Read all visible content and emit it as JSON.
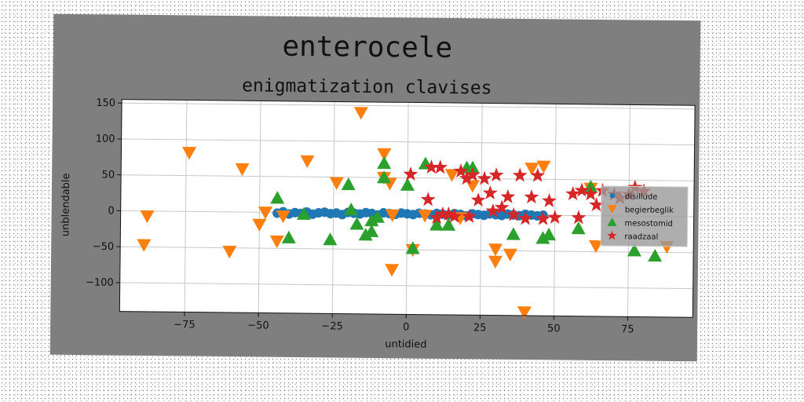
{
  "chart_data": {
    "type": "scatter",
    "title": "enterocele",
    "subtitle": "enigmatization clavises",
    "xlabel": "untidied",
    "ylabel": "unblendable",
    "xlim": [
      -97,
      97
    ],
    "ylim": [
      -140,
      155
    ],
    "xticks": [
      -75,
      -50,
      -25,
      0,
      25,
      50,
      75
    ],
    "yticks": [
      -100,
      -50,
      0,
      50,
      100,
      150
    ],
    "grid": true,
    "legend_position": "center-right",
    "series": [
      {
        "name": "disillude",
        "marker": "circle",
        "color": "#1f77b4",
        "points": [
          [
            -44,
            -1
          ],
          [
            -42,
            1
          ],
          [
            -40,
            -2
          ],
          [
            -38,
            0
          ],
          [
            -36,
            -1
          ],
          [
            -34,
            1
          ],
          [
            -32,
            -2
          ],
          [
            -30,
            0
          ],
          [
            -28,
            1
          ],
          [
            -26,
            -1
          ],
          [
            -24,
            0
          ],
          [
            -22,
            -2
          ],
          [
            -20,
            1
          ],
          [
            -18,
            0
          ],
          [
            -16,
            -1
          ],
          [
            -14,
            1
          ],
          [
            -12,
            0
          ],
          [
            -10,
            -2
          ],
          [
            -8,
            1
          ],
          [
            -6,
            0
          ],
          [
            -4,
            -1
          ],
          [
            -2,
            1
          ],
          [
            0,
            0
          ],
          [
            2,
            -1
          ],
          [
            4,
            1
          ],
          [
            6,
            0
          ],
          [
            8,
            -1
          ],
          [
            10,
            1
          ],
          [
            12,
            0
          ],
          [
            14,
            -1
          ],
          [
            16,
            1
          ],
          [
            18,
            0
          ],
          [
            20,
            -2
          ],
          [
            22,
            1
          ],
          [
            24,
            0
          ],
          [
            26,
            -1
          ],
          [
            28,
            1
          ],
          [
            30,
            0
          ],
          [
            32,
            -1
          ],
          [
            34,
            1
          ],
          [
            36,
            0
          ],
          [
            38,
            -1
          ],
          [
            40,
            1
          ],
          [
            42,
            0
          ],
          [
            44,
            -1
          ],
          [
            46,
            0
          ]
        ]
      },
      {
        "name": "begierbeglik",
        "marker": "triangle-down",
        "color": "#ff7f0e",
        "points": [
          [
            -88,
            -7
          ],
          [
            -89,
            -47
          ],
          [
            -74,
            82
          ],
          [
            -60,
            -55
          ],
          [
            -56,
            60
          ],
          [
            -50,
            -17
          ],
          [
            -48,
            0
          ],
          [
            -44,
            -40
          ],
          [
            -42,
            -5
          ],
          [
            -34,
            72
          ],
          [
            -24,
            42
          ],
          [
            -16,
            140
          ],
          [
            -8,
            83
          ],
          [
            -8,
            50
          ],
          [
            -6,
            42
          ],
          [
            -5,
            -2
          ],
          [
            -5,
            -78
          ],
          [
            2,
            -50
          ],
          [
            6,
            -2
          ],
          [
            15,
            55
          ],
          [
            18,
            -5
          ],
          [
            22,
            40
          ],
          [
            30,
            -65
          ],
          [
            30,
            -48
          ],
          [
            35,
            -55
          ],
          [
            40,
            -135
          ],
          [
            42,
            65
          ],
          [
            46,
            68
          ],
          [
            62,
            38
          ],
          [
            64,
            -42
          ],
          [
            88,
            -42
          ]
        ]
      },
      {
        "name": "mesostomid",
        "marker": "triangle-up",
        "color": "#2ca02c",
        "points": [
          [
            -44,
            20
          ],
          [
            -40,
            -35
          ],
          [
            -35,
            -2
          ],
          [
            -26,
            -37
          ],
          [
            -20,
            40
          ],
          [
            -19,
            5
          ],
          [
            -17,
            -15
          ],
          [
            -14,
            -30
          ],
          [
            -12,
            -25
          ],
          [
            -12,
            -10
          ],
          [
            -10,
            -5
          ],
          [
            -8,
            50
          ],
          [
            -8,
            70
          ],
          [
            0,
            40
          ],
          [
            2,
            -48
          ],
          [
            6,
            70
          ],
          [
            10,
            -15
          ],
          [
            14,
            -15
          ],
          [
            20,
            65
          ],
          [
            22,
            65
          ],
          [
            36,
            -27
          ],
          [
            46,
            -32
          ],
          [
            48,
            -27
          ],
          [
            58,
            -18
          ],
          [
            62,
            40
          ],
          [
            77,
            -48
          ],
          [
            84,
            -55
          ]
        ]
      },
      {
        "name": "raadzaal",
        "marker": "star",
        "color": "#d62728",
        "points": [
          [
            1,
            55
          ],
          [
            7,
            20
          ],
          [
            8,
            65
          ],
          [
            10,
            -5
          ],
          [
            11,
            65
          ],
          [
            12,
            0
          ],
          [
            14,
            0
          ],
          [
            16,
            -3
          ],
          [
            18,
            60
          ],
          [
            20,
            50
          ],
          [
            21,
            -3
          ],
          [
            22,
            55
          ],
          [
            24,
            20
          ],
          [
            26,
            50
          ],
          [
            28,
            30
          ],
          [
            29,
            5
          ],
          [
            30,
            55
          ],
          [
            32,
            10
          ],
          [
            34,
            25
          ],
          [
            36,
            0
          ],
          [
            38,
            55
          ],
          [
            40,
            -5
          ],
          [
            42,
            25
          ],
          [
            44,
            55
          ],
          [
            46,
            -5
          ],
          [
            48,
            20
          ],
          [
            50,
            -3
          ],
          [
            56,
            30
          ],
          [
            58,
            -3
          ],
          [
            59,
            35
          ],
          [
            62,
            30
          ],
          [
            64,
            15
          ],
          [
            66,
            35
          ],
          [
            70,
            30
          ],
          [
            72,
            25
          ],
          [
            75,
            30
          ],
          [
            77,
            40
          ],
          [
            80,
            35
          ]
        ]
      }
    ]
  }
}
